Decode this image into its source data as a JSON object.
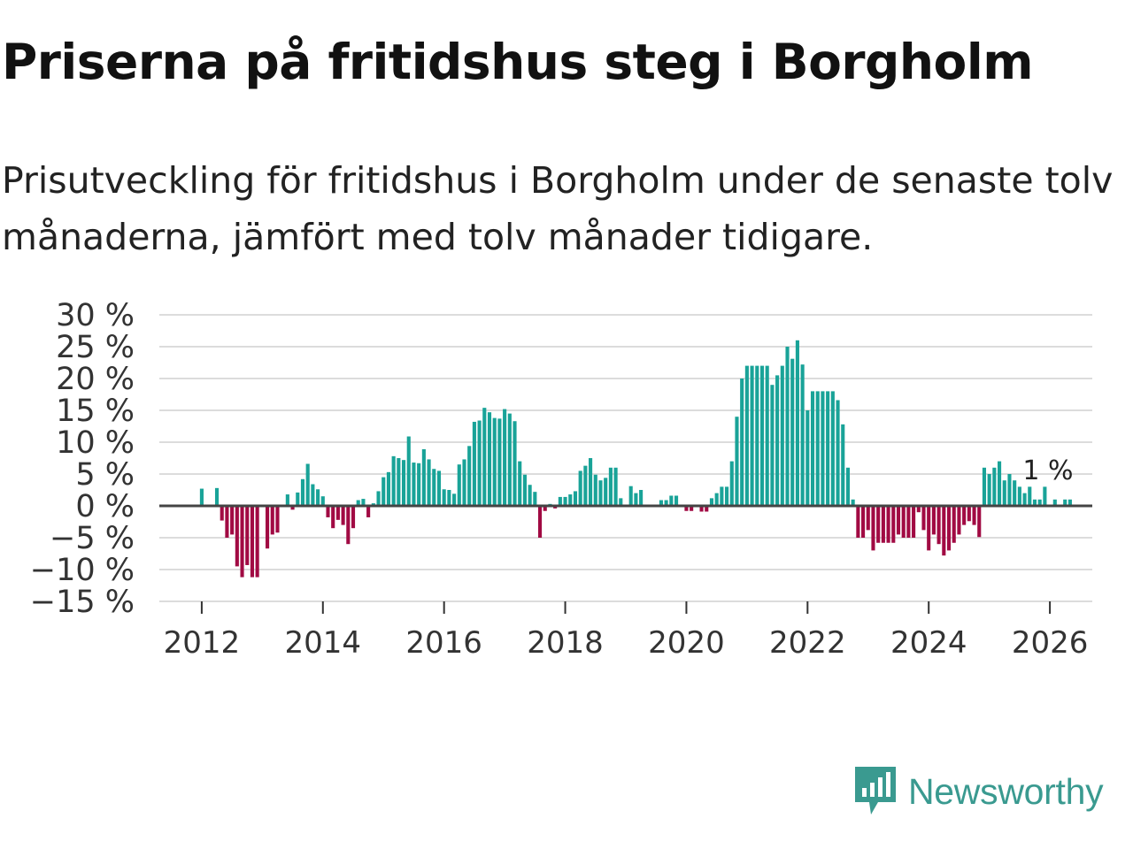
{
  "title": "Priserna på fritidshus steg i Borgholm",
  "subtitle": "Prisutveckling för fritidshus i Borgholm under de senaste tolv månaderna, jämfört med tolv månader tidigare.",
  "brand": "Newsworthy",
  "colors": {
    "positive": "#19a398",
    "negative": "#a10a43",
    "grid": "#dcdcdc",
    "zero_line": "#444444"
  },
  "chart_data": {
    "type": "bar",
    "start_year": 2012,
    "start_month": 1,
    "ylim": [
      -15,
      30
    ],
    "xlim": [
      2011.3,
      2026.7
    ],
    "y_ticks": [
      30,
      25,
      20,
      15,
      10,
      5,
      0,
      -5,
      -10,
      -15
    ],
    "y_tick_labels": [
      "30 %",
      "25 %",
      "20 %",
      "15 %",
      "10 %",
      "5 %",
      "0 %",
      "−5 %",
      "−10 %",
      "−15 %"
    ],
    "x_ticks": [
      "2012",
      "2014",
      "2016",
      "2018",
      "2020",
      "2022",
      "2024",
      "2026"
    ],
    "annotation": "1 %",
    "values": [
      2.7,
      0,
      0,
      2.8,
      -2.3,
      -5,
      -4.5,
      -9.5,
      -11.2,
      -9.3,
      -11.2,
      -11.2,
      0,
      -6.7,
      -4.5,
      -4.2,
      0,
      1.8,
      -0.6,
      2.1,
      4.2,
      6.6,
      3.4,
      2.6,
      1.5,
      -1.8,
      -3.5,
      -2.2,
      -3,
      -6,
      -3.5,
      0.9,
      1.1,
      -1.8,
      0.4,
      2.3,
      4.5,
      5.3,
      7.8,
      7.5,
      7.2,
      10.9,
      6.8,
      6.7,
      8.9,
      7.3,
      5.8,
      5.5,
      2.6,
      2.5,
      1.9,
      6.5,
      7.3,
      9.4,
      13.2,
      13.4,
      15.4,
      14.7,
      13.8,
      13.7,
      15.2,
      14.5,
      13.3,
      7,
      4.9,
      3.3,
      2.2,
      -5,
      -0.8,
      0.3,
      -0.4,
      1.4,
      1.4,
      1.8,
      2.3,
      5.5,
      6.3,
      7.5,
      4.9,
      4,
      4.4,
      6,
      6,
      1.2,
      0,
      3.1,
      2,
      2.5,
      0,
      0,
      0,
      0.9,
      0.9,
      1.6,
      1.6,
      0,
      -0.8,
      -0.8,
      0,
      -0.9,
      -0.9,
      1.2,
      2,
      3,
      3,
      7,
      14,
      20,
      22,
      22,
      22,
      22,
      22,
      19,
      20.5,
      22,
      25,
      23.1,
      26,
      22.2,
      15,
      18,
      18,
      18,
      18,
      18,
      16.6,
      12.8,
      6,
      1,
      -5,
      -5,
      -3.8,
      -7,
      -5.8,
      -5.8,
      -5.8,
      -5.8,
      -4.5,
      -5,
      -5,
      -5,
      -1,
      -3.8,
      -7,
      -4.5,
      -6,
      -7.8,
      -7,
      -5.8,
      -4.5,
      -3,
      -2.4,
      -3,
      -4.9,
      6,
      5,
      6,
      7,
      4,
      5,
      4,
      3,
      2,
      3,
      1,
      1,
      3
    ],
    "tail_values": [
      0,
      1,
      0,
      1,
      1
    ]
  }
}
